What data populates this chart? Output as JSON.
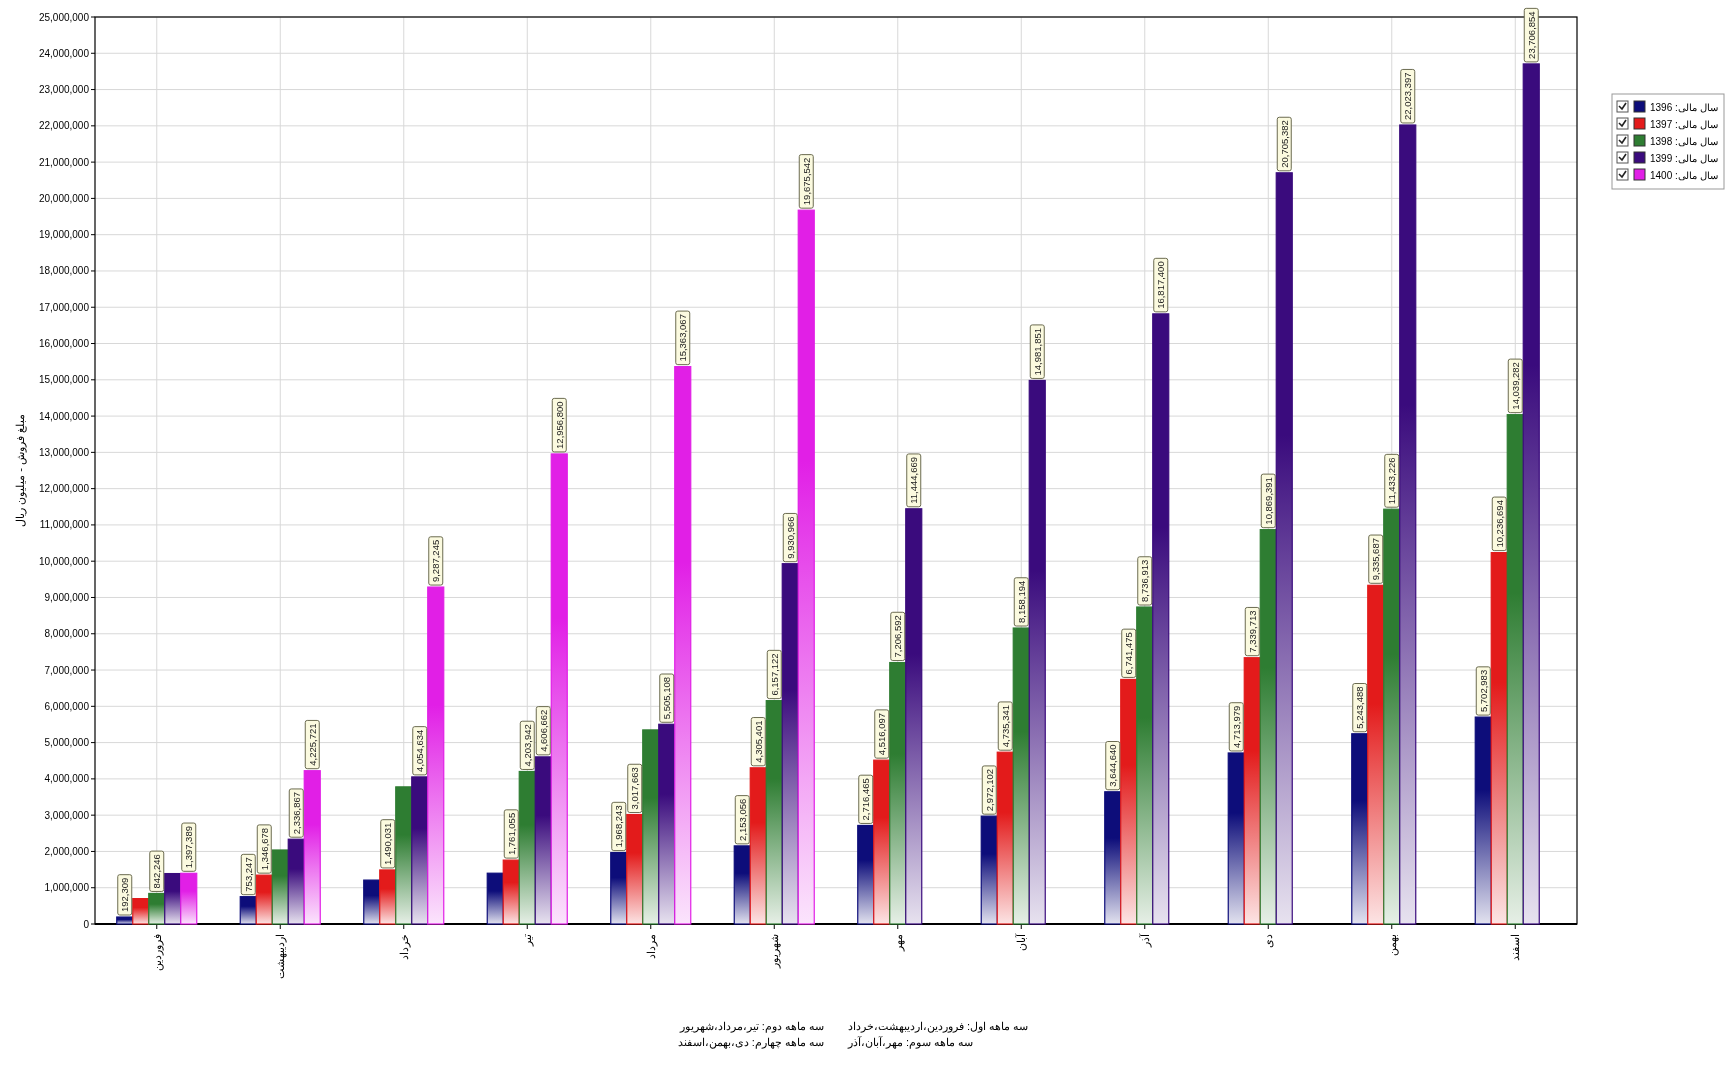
{
  "chart_data": {
    "type": "bar",
    "ylabel": "مبلغ فروش - میلیون ریال",
    "categories": [
      "فروردین",
      "اردیبهشت",
      "خرداد",
      "تیر",
      "مرداد",
      "شهریور",
      "مهر",
      "آبان",
      "آذر",
      "دی",
      "بهمن",
      "اسفند"
    ],
    "series": [
      {
        "name": "سال مالی: 1396",
        "color": "#0d0d7a",
        "values": [
          192309,
          753247,
          1210000,
          1400000,
          1968243,
          2153056,
          2716465,
          2972102,
          3644640,
          4713979,
          5243488,
          5702983
        ],
        "value_labels": [
          "192,309",
          "753,247",
          null,
          null,
          "1,968,243",
          "2,153,056",
          "2,716,465",
          "2,972,102",
          "3,644,640",
          "4,713,979",
          "5,243,488",
          "5,702,983"
        ]
      },
      {
        "name": "سال مالی: 1397",
        "color": "#e31b1b",
        "values": [
          700000,
          1346678,
          1490031,
          1761055,
          3017663,
          4305401,
          4516097,
          4735341,
          6741475,
          7339713,
          9335687,
          10236694
        ],
        "value_labels": [
          null,
          "1,346,678",
          "1,490,031",
          "1,761,055",
          "3,017,663",
          "4,305,401",
          "4,516,097",
          "4,735,341",
          "6,741,475",
          "7,339,713",
          "9,335,687",
          "10,236,694"
        ]
      },
      {
        "name": "سال مالی: 1398",
        "color": "#2e7d32",
        "values": [
          842246,
          2040000,
          3780000,
          4203942,
          5350000,
          6157122,
          7206592,
          8158194,
          8736913,
          10869391,
          11433226,
          14039282
        ],
        "value_labels": [
          "842,246",
          null,
          null,
          "4,203,942",
          null,
          "6,157,122",
          "7,206,592",
          "8,158,194",
          "8,736,913",
          "10,869,391",
          "11,433,226",
          "14,039,282"
        ]
      },
      {
        "name": "سال مالی: 1399",
        "color": "#3a0b7d",
        "values": [
          1390000,
          2336867,
          4054634,
          4606662,
          5505108,
          9930966,
          11444669,
          14981851,
          16817400,
          20705382,
          22023397,
          23706854
        ],
        "value_labels": [
          null,
          "2,336,867",
          "4,054,634",
          "4,606,662",
          "5,505,108",
          "9,930,966",
          "11,444,669",
          "14,981,851",
          "16,817,400",
          "20,705,382",
          "22,023,397",
          "23,706,854"
        ]
      },
      {
        "name": "سال مالی: 1400",
        "color": "#e11fe6",
        "values": [
          1397389,
          4225721,
          9287245,
          12956800,
          15363067,
          19675542,
          null,
          null,
          null,
          null,
          null,
          null
        ],
        "value_labels": [
          "1,397,389",
          "4,225,721",
          "9,287,245",
          "12,956,800",
          "15,363,067",
          "19,675,542",
          null,
          null,
          null,
          null,
          null,
          null
        ]
      }
    ],
    "ylim": [
      0,
      25000000
    ],
    "yticks": [
      {
        "value": 0,
        "label": "0"
      },
      {
        "value": 1000000,
        "label": "1,000,000"
      },
      {
        "value": 2000000,
        "label": "2,000,000"
      },
      {
        "value": 3000000,
        "label": "3,000,000"
      },
      {
        "value": 4000000,
        "label": "4,000,000"
      },
      {
        "value": 5000000,
        "label": "5,000,000"
      },
      {
        "value": 6000000,
        "label": "6,000,000"
      },
      {
        "value": 7000000,
        "label": "7,000,000"
      },
      {
        "value": 8000000,
        "label": "8,000,000"
      },
      {
        "value": 9000000,
        "label": "9,000,000"
      },
      {
        "value": 10000000,
        "label": "10,000,000"
      },
      {
        "value": 11000000,
        "label": "11,000,000"
      },
      {
        "value": 12000000,
        "label": "12,000,000"
      },
      {
        "value": 13000000,
        "label": "13,000,000"
      },
      {
        "value": 14000000,
        "label": "14,000,000"
      },
      {
        "value": 15000000,
        "label": "15,000,000"
      },
      {
        "value": 16000000,
        "label": "16,000,000"
      },
      {
        "value": 17000000,
        "label": "17,000,000"
      },
      {
        "value": 18000000,
        "label": "18,000,000"
      },
      {
        "value": 19000000,
        "label": "19,000,000"
      },
      {
        "value": 20000000,
        "label": "20,000,000"
      },
      {
        "value": 21000000,
        "label": "21,000,000"
      },
      {
        "value": 22000000,
        "label": "22,000,000"
      },
      {
        "value": 23000000,
        "label": "23,000,000"
      },
      {
        "value": 24000000,
        "label": "24,000,000"
      },
      {
        "value": 25000000,
        "label": "25,000,000"
      }
    ],
    "grid": true,
    "legend": "right",
    "annotations": [
      "سه ماهه اول: فروردین،اردیبهشت،خرداد",
      "سه ماهه دوم: تیر،مرداد،شهریور",
      "سه ماهه سوم: مهر،آبان،آذر",
      "سه ماهه چهارم: دی،بهمن،اسفند"
    ]
  }
}
